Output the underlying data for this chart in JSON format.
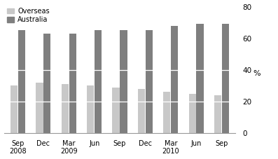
{
  "categories": [
    "Sep\n2008",
    "Dec",
    "Mar\n2009",
    "Jun",
    "Sep",
    "Dec",
    "Mar\n2010",
    "Jun",
    "Sep"
  ],
  "overseas": [
    30,
    32,
    31,
    30,
    29,
    28,
    26,
    25,
    24
  ],
  "australia": [
    65,
    63,
    63,
    65,
    65,
    65,
    68,
    69,
    69
  ],
  "overseas_color": "#c8c8c8",
  "australia_color": "#7f7f7f",
  "ylim": [
    0,
    80
  ],
  "yticks": [
    0,
    20,
    40,
    60,
    80
  ],
  "ylabel": "%",
  "legend_labels": [
    "Overseas",
    "Australia"
  ],
  "bar_width": 0.28,
  "figsize": [
    3.97,
    2.27
  ],
  "dpi": 100
}
